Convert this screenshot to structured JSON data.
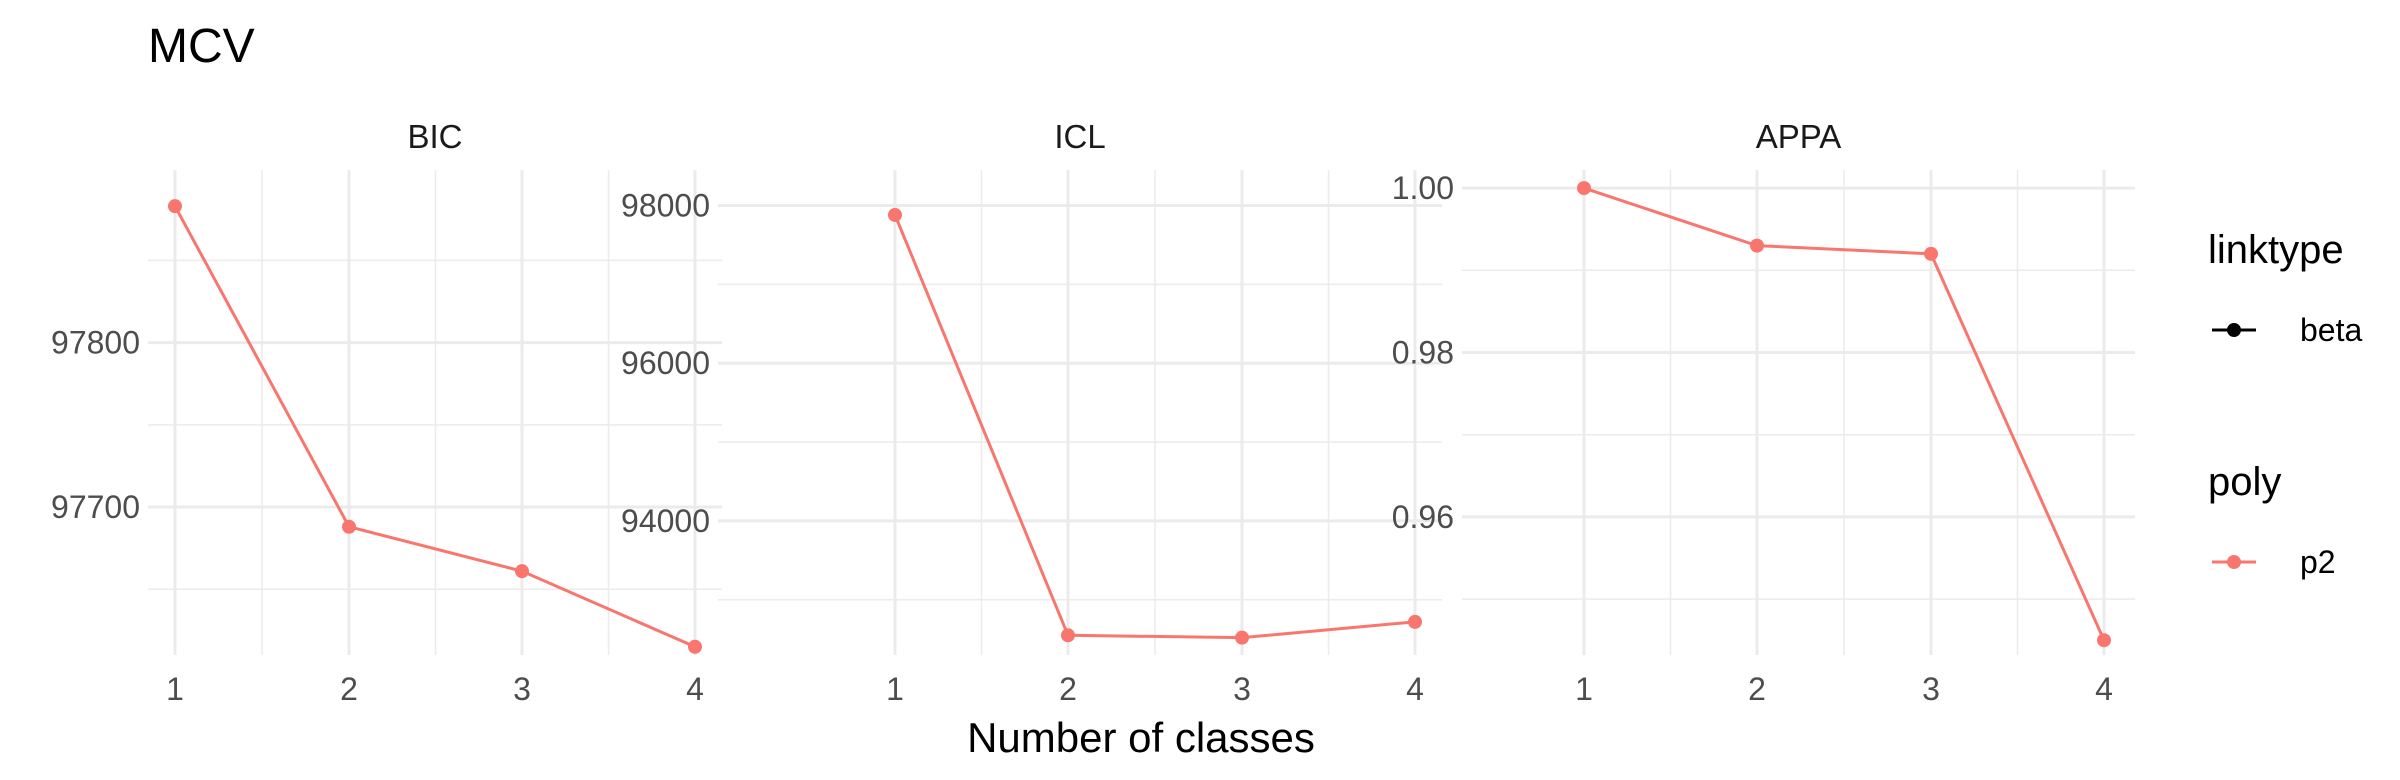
{
  "chart_data": {
    "type": "line",
    "title": "MCV",
    "xlabel": "Number of classes",
    "x": [
      1,
      2,
      3,
      4
    ],
    "colors": {
      "p2": "#F8766D",
      "beta": "#000000"
    },
    "legend": [
      {
        "title": "linktype",
        "items": [
          "beta"
        ],
        "key": "line-point",
        "color": "#000000"
      },
      {
        "title": "poly",
        "items": [
          "p2"
        ],
        "key": "line-point",
        "color": "#F8766D"
      }
    ],
    "legend_position": "right",
    "grid": true,
    "panels": [
      {
        "name": "BIC",
        "ylim": [
          97610,
          97905
        ],
        "yticks": [
          97700,
          97800
        ],
        "yticklabels": [
          "97700",
          "97800"
        ],
        "values": [
          97883,
          97688,
          97661,
          97615
        ]
      },
      {
        "name": "ICL",
        "ylim": [
          92300,
          98450
        ],
        "yticks": [
          94000,
          96000,
          98000
        ],
        "yticklabels": [
          "94000",
          "96000",
          "98000"
        ],
        "values": [
          97880,
          92550,
          92520,
          92720
        ]
      },
      {
        "name": "APPA",
        "ylim": [
          0.9432,
          1.0022
        ],
        "yticks": [
          0.96,
          0.98,
          1.0
        ],
        "yticklabels": [
          "0.96",
          "0.98",
          "1.00"
        ],
        "values": [
          1.0,
          0.993,
          0.992,
          0.945
        ]
      }
    ]
  }
}
